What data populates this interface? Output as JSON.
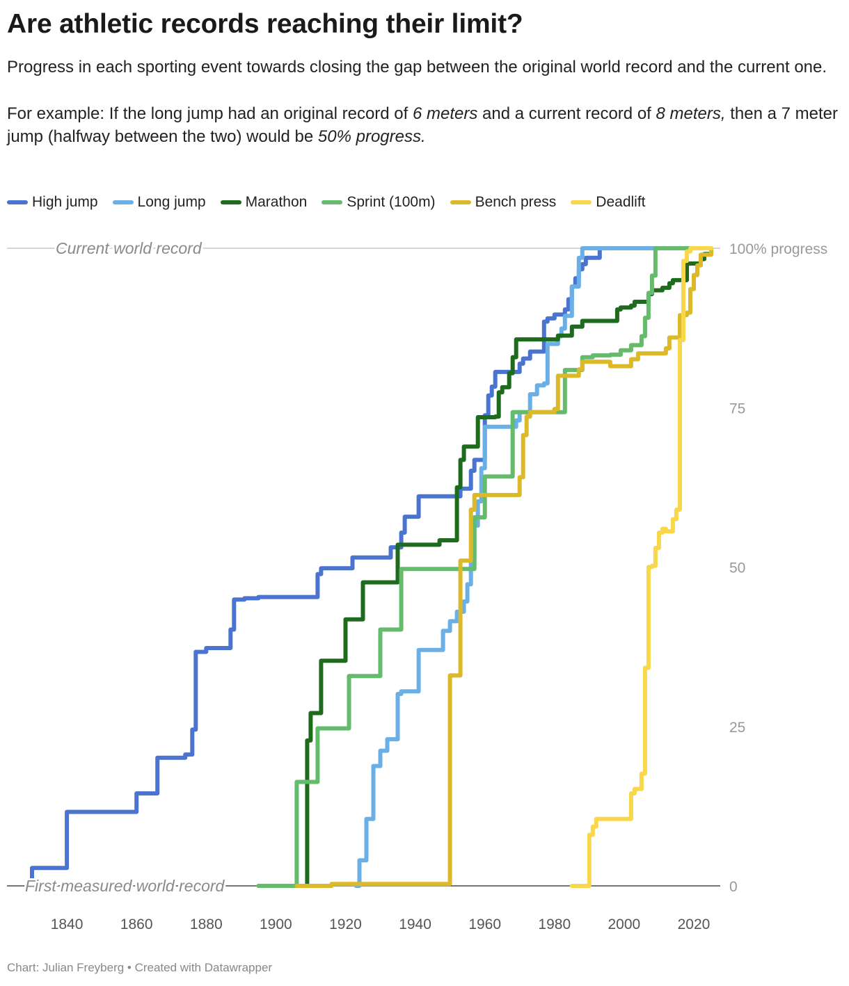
{
  "title": "Are athletic records reaching their limit?",
  "subtitle": {
    "p1": "Progress in each sporting event towards closing the gap between the original world record and the current one.",
    "p2_a": "For example: If the long jump had an original record of ",
    "p2_b": "6 meters",
    "p2_c": " and a current record of ",
    "p2_d": "8 meters,",
    "p2_e": " then a 7 meter jump (halfway between the two) would be ",
    "p2_f": "50% progress."
  },
  "footer": "Chart: Julian Freyberg • Created with Datawrapper",
  "chart_data": {
    "type": "line",
    "interpolation": "step-after",
    "xlim": [
      1826,
      2025
    ],
    "ylim": [
      0,
      100
    ],
    "x_ticks": [
      1840,
      1860,
      1880,
      1900,
      1920,
      1940,
      1960,
      1980,
      2000,
      2020
    ],
    "x_tick_labels": [
      "1840",
      "1860",
      "1880",
      "1900",
      "1920",
      "1940",
      "1960",
      "1980",
      "2000",
      "2020"
    ],
    "y_ticks": [
      0,
      25,
      50,
      75,
      100
    ],
    "y_tick_labels": [
      "0",
      "25",
      "50",
      "75",
      "100% progress"
    ],
    "y_axis_side": "right",
    "annotations": [
      {
        "text": "Current world record",
        "y": 100
      },
      {
        "text": "First measured world record",
        "y": 0
      }
    ],
    "legend_position": "top-left",
    "series": [
      {
        "name": "High jump",
        "color": "#4a74cf",
        "x": [
          1829,
          1830,
          1840,
          1860,
          1866,
          1874,
          1876,
          1877,
          1880,
          1887,
          1888,
          1891,
          1895,
          1912,
          1913,
          1922,
          1933,
          1936,
          1937,
          1941,
          1953,
          1956,
          1957,
          1960,
          1961,
          1962,
          1963,
          1970,
          1971,
          1973,
          1977,
          1978,
          1980,
          1983,
          1984,
          1985,
          1986,
          1987,
          1988,
          1989,
          1993,
          2025
        ],
        "y": [
          0,
          2.8,
          11.6,
          14.5,
          20.1,
          20.6,
          24.5,
          36.7,
          37.3,
          40.2,
          44.9,
          45.1,
          45.3,
          48.9,
          49.8,
          51.5,
          53.1,
          55.4,
          57.9,
          61.1,
          62.3,
          65.1,
          66.8,
          73.8,
          76.9,
          78.3,
          80.6,
          81.9,
          82.7,
          83.8,
          88.5,
          89.0,
          89.6,
          90.4,
          92.0,
          94.0,
          95.3,
          96.7,
          97.5,
          98.5,
          100,
          100
        ]
      },
      {
        "name": "Long jump",
        "color": "#6ab0e6",
        "x": [
          1923,
          1924,
          1926,
          1928,
          1930,
          1932,
          1935,
          1936,
          1941,
          1948,
          1950,
          1952,
          1954,
          1955,
          1956,
          1957,
          1958,
          1959,
          1960,
          1961,
          1962,
          1965,
          1969,
          1970,
          1973,
          1975,
          1977,
          1978,
          1981,
          1982,
          1983,
          1985,
          1987,
          1988,
          1989,
          2025
        ],
        "y": [
          0,
          4.0,
          10.5,
          18.8,
          21.2,
          23.0,
          30.1,
          30.5,
          37.0,
          40.0,
          41.5,
          43.0,
          44.6,
          47.3,
          51.0,
          56.5,
          60.3,
          65.5,
          72.0,
          72.0,
          72.0,
          72.0,
          73.0,
          74.3,
          77.1,
          78.5,
          78.8,
          85.0,
          86.2,
          87.4,
          89.4,
          94.0,
          98.5,
          100,
          100,
          100
        ],
        "x_end": 2025
      },
      {
        "name": "Marathon",
        "color": "#1f6b1e",
        "x": [
          1908,
          1909,
          1910,
          1913,
          1920,
          1925,
          1935,
          1947,
          1952,
          1953,
          1954,
          1958,
          1963,
          1964,
          1965,
          1967,
          1968,
          1969,
          1981,
          1985,
          1988,
          1998,
          1999,
          2002,
          2003,
          2007,
          2008,
          2011,
          2013,
          2014,
          2018,
          2022,
          2023,
          2025
        ],
        "y": [
          0,
          22.8,
          27.1,
          35.3,
          41.8,
          47.6,
          53.5,
          54.2,
          62.5,
          66.8,
          68.9,
          73.5,
          73.6,
          77.4,
          78.2,
          80.4,
          82.9,
          85.7,
          86.3,
          87.7,
          88.6,
          90.4,
          90.7,
          91.0,
          91.6,
          92.8,
          93.4,
          93.8,
          94.5,
          95.0,
          97.6,
          98.3,
          99.1,
          100
        ]
      },
      {
        "name": "Sprint (100m)",
        "color": "#63bb6b",
        "x": [
          1895,
          1906,
          1912,
          1921,
          1930,
          1936,
          1956,
          1957,
          1960,
          1968,
          1983,
          1988,
          1991,
          1994,
          1996,
          1999,
          2002,
          2005,
          2006,
          2007,
          2008,
          2009,
          2025
        ],
        "y": [
          0,
          16.3,
          24.7,
          32.9,
          40.2,
          49.7,
          49.7,
          57.8,
          64.2,
          74.3,
          80.9,
          82.9,
          83.2,
          83.2,
          83.3,
          84.0,
          84.8,
          86.2,
          89.1,
          93.0,
          95.7,
          100,
          100
        ]
      },
      {
        "name": "Bench press",
        "color": "#dcb92a",
        "x": [
          1906,
          1916,
          1950,
          1951,
          1953,
          1956,
          1957,
          1958,
          1970,
          1971,
          1972,
          1973,
          1980,
          1981,
          1987,
          1988,
          1994,
          1996,
          2002,
          2004,
          2012,
          2013,
          2016,
          2018,
          2019,
          2020,
          2021,
          2022,
          2025
        ],
        "y": [
          0,
          0.3,
          33.0,
          33.0,
          51.0,
          59.0,
          61.3,
          61.3,
          64.1,
          70.7,
          73.6,
          74.3,
          74.8,
          80.0,
          81.0,
          82.2,
          82.2,
          81.5,
          82.6,
          83.5,
          84.3,
          86.0,
          89.5,
          89.9,
          93.6,
          95.8,
          97.3,
          99.0,
          100
        ]
      },
      {
        "name": "Deadlift",
        "color": "#f8d84a",
        "x": [
          1985,
          1990,
          1991,
          1992,
          2002,
          2003,
          2005,
          2006,
          2007,
          2008,
          2009,
          2010,
          2011,
          2012,
          2014,
          2015,
          2016,
          2017,
          2018,
          2019,
          2025
        ],
        "y": [
          0,
          8.0,
          9.3,
          10.5,
          14.5,
          15.2,
          17.6,
          34.2,
          50.0,
          50.2,
          53.0,
          55.4,
          56.0,
          55.6,
          57.5,
          59.0,
          85.6,
          98.0,
          99.5,
          100,
          100
        ]
      }
    ]
  }
}
